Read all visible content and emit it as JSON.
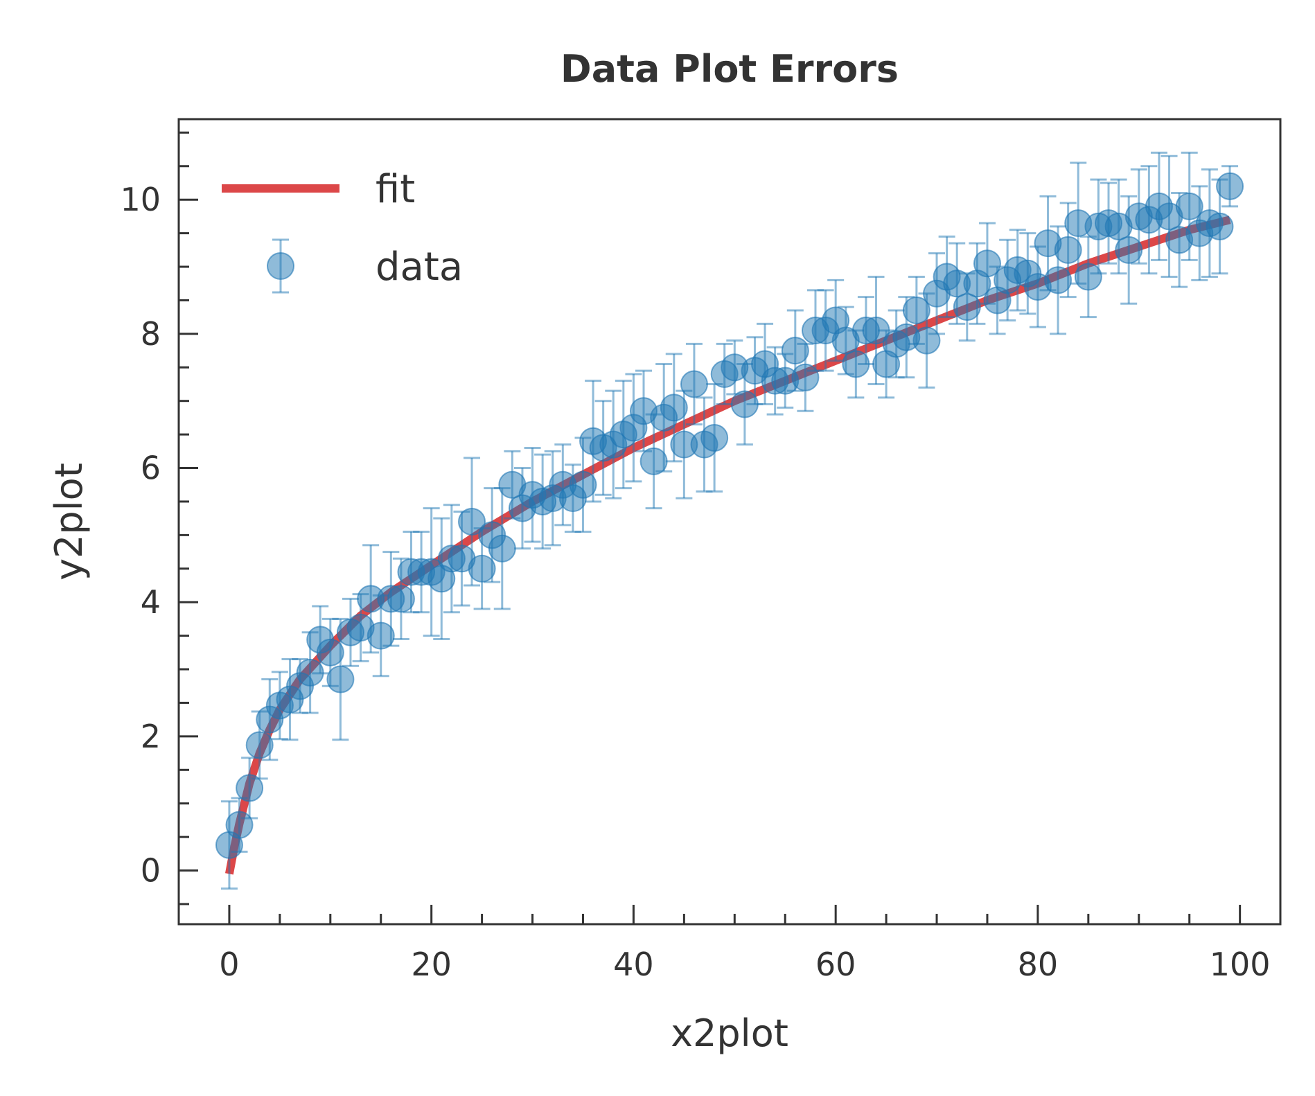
{
  "chart_data": {
    "type": "scatter",
    "title": "Data Plot Errors",
    "xlabel": "x2plot",
    "ylabel": "y2plot",
    "xlim": [
      -5,
      104
    ],
    "ylim": [
      -0.8,
      11.2
    ],
    "x_major_ticks": [
      0,
      20,
      40,
      60,
      80,
      100
    ],
    "x_tick_labels": [
      "0",
      "20",
      "40",
      "60",
      "80",
      "100"
    ],
    "y_major_ticks": [
      0,
      2,
      4,
      6,
      8,
      10
    ],
    "y_tick_labels": [
      "0",
      "2",
      "4",
      "6",
      "8",
      "10"
    ],
    "grid": false,
    "legend": {
      "placement": "top-left",
      "entries": [
        {
          "label": "fit",
          "kind": "line",
          "color": "#d62728"
        },
        {
          "label": "data",
          "kind": "errorbar-marker",
          "color": "#1f77b4"
        }
      ]
    },
    "series": [
      {
        "name": "data",
        "kind": "errorbar",
        "color": "#1f77b4",
        "x": [
          0,
          1,
          2,
          3,
          4,
          5,
          6,
          7,
          8,
          9,
          10,
          11,
          12,
          13,
          14,
          15,
          16,
          17,
          18,
          19,
          20,
          21,
          22,
          23,
          24,
          25,
          26,
          27,
          28,
          29,
          30,
          31,
          32,
          33,
          34,
          35,
          36,
          37,
          38,
          39,
          40,
          41,
          42,
          43,
          44,
          45,
          46,
          47,
          48,
          49,
          50,
          51,
          52,
          53,
          54,
          55,
          56,
          57,
          58,
          59,
          60,
          61,
          62,
          63,
          64,
          65,
          66,
          67,
          68,
          69,
          70,
          71,
          72,
          73,
          74,
          75,
          76,
          77,
          78,
          79,
          80,
          81,
          82,
          83,
          84,
          85,
          86,
          87,
          88,
          89,
          90,
          91,
          92,
          93,
          94,
          95,
          96,
          97,
          98,
          99
        ],
        "y": [
          0.38,
          0.68,
          1.23,
          1.87,
          2.25,
          2.46,
          2.55,
          2.75,
          2.95,
          3.44,
          3.25,
          2.85,
          3.55,
          3.62,
          4.05,
          3.5,
          4.05,
          4.05,
          4.45,
          4.45,
          4.45,
          4.35,
          4.65,
          4.65,
          5.2,
          4.5,
          5.0,
          4.8,
          5.75,
          5.4,
          5.6,
          5.5,
          5.55,
          5.75,
          5.55,
          5.75,
          6.4,
          6.3,
          6.35,
          6.5,
          6.6,
          6.85,
          6.1,
          6.75,
          6.9,
          6.35,
          7.25,
          6.35,
          6.45,
          7.4,
          7.5,
          6.95,
          7.45,
          7.55,
          7.3,
          7.3,
          7.75,
          7.35,
          8.05,
          8.05,
          8.2,
          7.9,
          7.55,
          8.05,
          8.05,
          7.55,
          7.85,
          7.95,
          8.35,
          7.9,
          8.6,
          8.85,
          8.75,
          8.4,
          8.75,
          9.05,
          8.5,
          8.8,
          8.95,
          8.9,
          8.7,
          9.35,
          8.8,
          9.25,
          9.65,
          8.85,
          9.6,
          9.65,
          9.6,
          9.25,
          9.75,
          9.7,
          9.9,
          9.75,
          9.4,
          9.9,
          9.5,
          9.65,
          9.6,
          10.2
        ],
        "yerr": [
          0.65,
          0.4,
          0.45,
          0.5,
          0.6,
          0.5,
          0.6,
          0.4,
          0.6,
          0.5,
          0.5,
          0.9,
          0.5,
          0.5,
          0.8,
          0.6,
          0.7,
          0.6,
          0.6,
          0.6,
          0.95,
          0.9,
          0.8,
          0.7,
          0.95,
          0.6,
          0.7,
          0.9,
          0.5,
          0.6,
          0.7,
          0.7,
          0.7,
          0.6,
          0.5,
          0.7,
          0.9,
          0.7,
          0.8,
          0.8,
          0.8,
          0.6,
          0.7,
          0.8,
          0.8,
          0.8,
          0.6,
          0.7,
          0.8,
          0.45,
          0.4,
          0.6,
          0.5,
          0.6,
          0.5,
          0.4,
          0.6,
          0.5,
          0.6,
          0.6,
          0.6,
          0.5,
          0.5,
          0.5,
          0.8,
          0.5,
          0.5,
          0.6,
          0.5,
          0.7,
          0.6,
          0.6,
          0.6,
          0.5,
          0.6,
          0.6,
          0.5,
          0.6,
          0.6,
          0.6,
          0.6,
          0.7,
          0.8,
          0.7,
          0.9,
          0.6,
          0.7,
          0.6,
          0.7,
          0.8,
          0.7,
          0.8,
          0.8,
          0.9,
          0.7,
          0.8,
          0.7,
          0.8,
          0.7,
          0.3
        ]
      },
      {
        "name": "fit",
        "kind": "line",
        "color": "#d62728",
        "x": [
          0,
          0.5,
          1,
          2,
          3,
          4,
          5,
          7,
          10,
          13,
          16,
          20,
          25,
          30,
          35,
          40,
          45,
          50,
          55,
          60,
          65,
          70,
          75,
          80,
          85,
          90,
          95,
          99
        ],
        "y": [
          -0.05,
          0.35,
          0.7,
          1.3,
          1.75,
          2.1,
          2.4,
          2.85,
          3.35,
          3.8,
          4.15,
          4.55,
          5.05,
          5.5,
          5.9,
          6.3,
          6.65,
          7.0,
          7.3,
          7.6,
          7.9,
          8.2,
          8.5,
          8.75,
          9.05,
          9.3,
          9.55,
          9.7
        ]
      }
    ]
  }
}
